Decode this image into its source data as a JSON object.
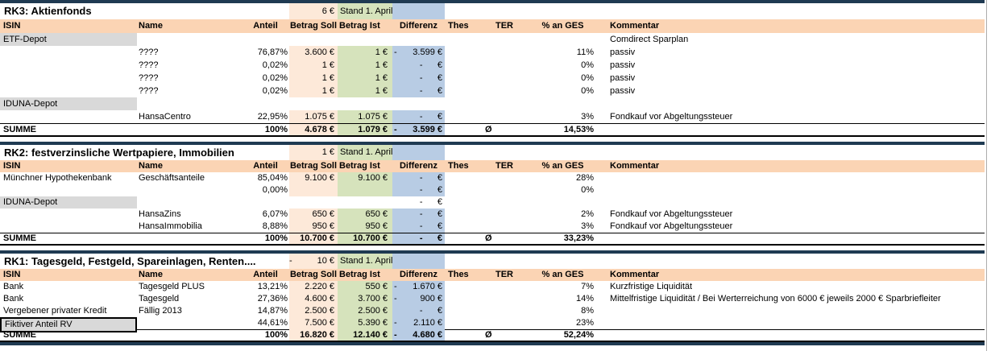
{
  "colors": {
    "header_fill": "#FBD4B4",
    "soll_fill": "#FDE9D9",
    "ist_fill": "#D6E3BC",
    "differenz_fill": "#B8CCE4",
    "depot_fill": "#D9D9D9",
    "divider": "#1F3A52"
  },
  "column_headers": [
    "ISIN",
    "Name",
    "Anteil",
    "Betrag Soll",
    "Betrag Ist",
    "Differenz",
    "Thes",
    "TER",
    "% an GES",
    "Kommentar"
  ],
  "sections": [
    {
      "id": "rk3",
      "title": "RK3: Aktienfonds",
      "title_amount": {
        "sign": "",
        "value": "6 €"
      },
      "stand_label": "Stand 1. April",
      "rows": [
        {
          "isin": "ETF-Depot",
          "isin_gray": true,
          "banded": false,
          "kommentar": "Comdirect Sparplan"
        },
        {
          "name": "????",
          "anteil": "76,87%",
          "soll": "3.600 €",
          "ist": "1 €",
          "diff": {
            "sign": "-",
            "value": "3.599 €"
          },
          "pct_ges": "11%",
          "kommentar": "passiv",
          "banded": true
        },
        {
          "name": "????",
          "anteil": "0,02%",
          "soll": "1 €",
          "ist": "1 €",
          "diff": {
            "sign": "",
            "value": "-      €"
          },
          "pct_ges": "0%",
          "kommentar": "passiv",
          "banded": true
        },
        {
          "name": "????",
          "anteil": "0,02%",
          "soll": "1 €",
          "ist": "1 €",
          "diff": {
            "sign": "",
            "value": "-      €"
          },
          "pct_ges": "0%",
          "kommentar": "passiv",
          "banded": true
        },
        {
          "name": "????",
          "anteil": "0,02%",
          "soll": "1 €",
          "ist": "1 €",
          "diff": {
            "sign": "",
            "value": "-      €"
          },
          "pct_ges": "0%",
          "kommentar": "passiv",
          "banded": true
        },
        {
          "isin": "IDUNA-Depot",
          "isin_gray": true,
          "banded": false
        },
        {
          "name": "HansaCentro",
          "anteil": "22,95%",
          "soll": "1.075 €",
          "ist": "1.075 €",
          "diff": {
            "sign": "",
            "value": "-      €"
          },
          "pct_ges": "3%",
          "kommentar": "Fondkauf vor Abgeltungssteuer",
          "banded": true
        }
      ],
      "summe": {
        "label": "SUMME",
        "anteil": "100%",
        "soll": "4.678 €",
        "ist": "1.079 €",
        "diff": {
          "sign": "-",
          "value": "3.599 €"
        },
        "avg_symbol": "Ø",
        "pct_ges": "14,53%"
      }
    },
    {
      "id": "rk2",
      "title": "RK2: festverzinsliche Wertpapiere, Immobilien",
      "title_amount": {
        "sign": "",
        "value": "1 €"
      },
      "stand_label": "Stand 1. April",
      "rows": [
        {
          "isin": "Münchner Hypothekenbank",
          "name": "Geschäftsanteile",
          "anteil": "85,04%",
          "soll": "9.100 €",
          "ist": "9.100 €",
          "diff": {
            "sign": "",
            "value": "-      €"
          },
          "pct_ges": "28%",
          "banded": true
        },
        {
          "anteil": "0,00%",
          "diff": {
            "sign": "",
            "value": "-      €"
          },
          "pct_ges": "0%",
          "banded": true
        },
        {
          "isin": "IDUNA-Depot",
          "isin_gray": true,
          "banded": false,
          "diff": {
            "sign": "",
            "value": "-      €"
          }
        },
        {
          "name": "HansaZins",
          "anteil": "6,07%",
          "soll": "650 €",
          "ist": "650 €",
          "diff": {
            "sign": "",
            "value": "-      €"
          },
          "pct_ges": "2%",
          "kommentar": "Fondkauf vor Abgeltungssteuer",
          "banded": true
        },
        {
          "name": "HansaImmobilia",
          "anteil": "8,88%",
          "soll": "950 €",
          "ist": "950 €",
          "diff": {
            "sign": "",
            "value": "-      €"
          },
          "pct_ges": "3%",
          "kommentar": "Fondkauf vor Abgeltungssteuer",
          "banded": true
        }
      ],
      "summe": {
        "label": "SUMME",
        "anteil": "100%",
        "soll": "10.700 €",
        "ist": "10.700 €",
        "diff": {
          "sign": "",
          "value": "-      €"
        },
        "avg_symbol": "Ø",
        "pct_ges": "33,23%"
      }
    },
    {
      "id": "rk1",
      "title": "RK1: Tagesgeld, Festgeld, Spareinlagen, Renten....",
      "title_amount": {
        "sign": "-",
        "value": "10 €"
      },
      "stand_label": "Stand 1. April",
      "rows": [
        {
          "isin": "Bank",
          "name": "Tagesgeld PLUS",
          "anteil": "13,21%",
          "soll": "2.220 €",
          "ist": "550 €",
          "diff": {
            "sign": "-",
            "value": "1.670 €"
          },
          "pct_ges": "7%",
          "kommentar": "Kurzfristige Liquidität",
          "banded": true
        },
        {
          "isin": "Bank",
          "name": "Tagesgeld",
          "anteil": "27,36%",
          "soll": "4.600 €",
          "ist": "3.700 €",
          "diff": {
            "sign": "-",
            "value": "900 €"
          },
          "pct_ges": "14%",
          "kommentar": "Mittelfristige Liquidität / Bei Werterreichung von 6000 € jeweils 2000 € Sparbriefleiter",
          "banded": true
        },
        {
          "isin": "Vergebener privater Kredit",
          "name": "Fällig 2013",
          "anteil": "14,87%",
          "soll": "2.500 €",
          "ist": "2.500 €",
          "diff": {
            "sign": "",
            "value": "-      €"
          },
          "pct_ges": "8%",
          "banded": true
        },
        {
          "isin": "Fiktiver Anteil RV",
          "isin_gray": true,
          "selected": true,
          "anteil": "44,61%",
          "soll": "7.500 €",
          "ist": "5.390 €",
          "diff": {
            "sign": "-",
            "value": "2.110 €"
          },
          "pct_ges": "23%",
          "banded": true
        }
      ],
      "summe": {
        "label": "SUMME",
        "anteil": "100%",
        "soll": "16.820 €",
        "ist": "12.140 €",
        "diff": {
          "sign": "-",
          "value": "4.680 €"
        },
        "avg_symbol": "Ø",
        "pct_ges": "52,24%"
      }
    }
  ]
}
